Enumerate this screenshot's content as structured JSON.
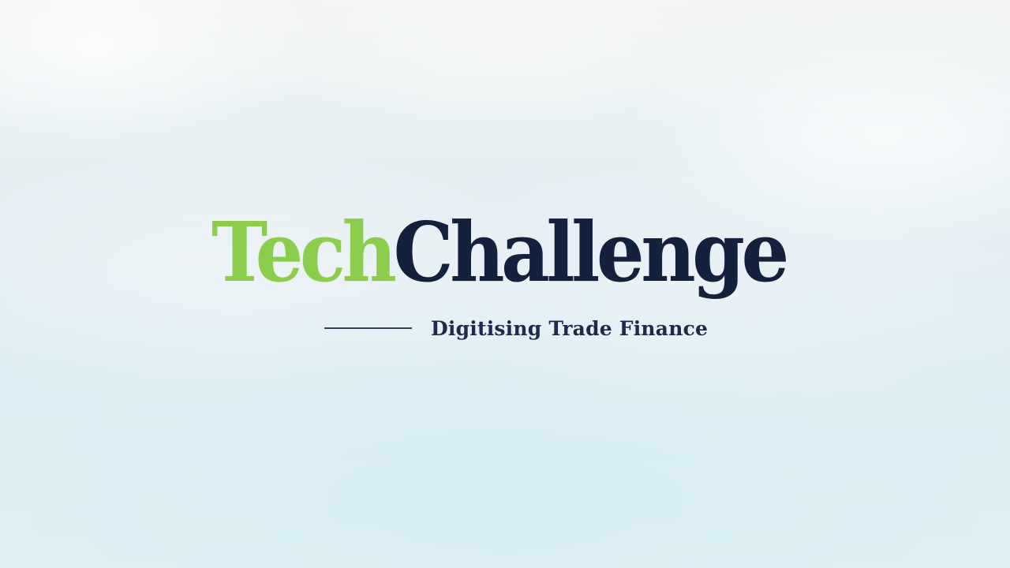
{
  "logo": {
    "part1": "Tech",
    "part2": "Challenge"
  },
  "tagline": "Digitising Trade Finance",
  "colors": {
    "accent_green": "#8ccd4e",
    "navy": "#14213d",
    "background_sky": "#e4eef3"
  }
}
